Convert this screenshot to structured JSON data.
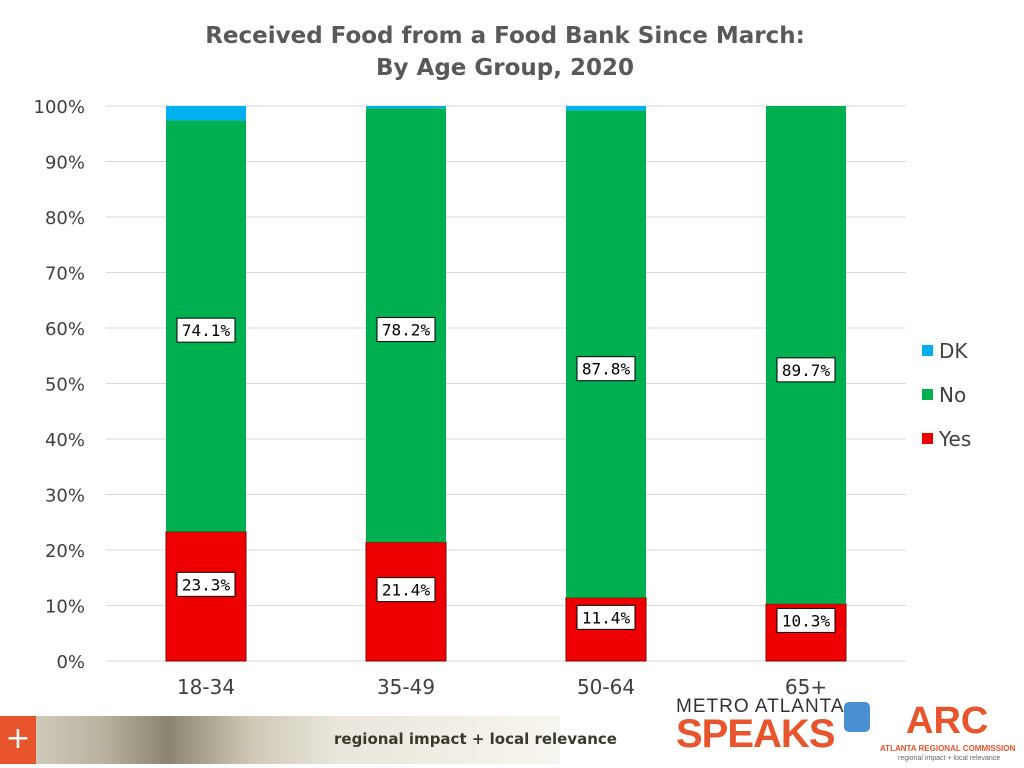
{
  "chart_data": {
    "type": "bar",
    "stacked": true,
    "title_lines": [
      "Received Food from a Food Bank Since March:",
      "By Age Group, 2020"
    ],
    "categories": [
      "18-34",
      "35-49",
      "50-64",
      "65+"
    ],
    "series": [
      {
        "name": "Yes",
        "color": "#ee0000",
        "values": [
          23.3,
          21.4,
          11.4,
          10.3
        ],
        "labels": [
          "23.3%",
          "21.4%",
          "11.4%",
          "10.3%"
        ]
      },
      {
        "name": "No",
        "color": "#00b050",
        "values": [
          74.1,
          78.2,
          87.8,
          89.7
        ],
        "labels": [
          "74.1%",
          "78.2%",
          "87.8%",
          "89.7%"
        ]
      },
      {
        "name": "DK",
        "color": "#00b0f0",
        "values": [
          2.6,
          0.4,
          0.8,
          0.0
        ],
        "labels": [
          "",
          "",
          "",
          ""
        ]
      }
    ],
    "legend_order": [
      "DK",
      "No",
      "Yes"
    ],
    "legend_position": "right",
    "ylim": [
      0,
      100
    ],
    "yticks": [
      0,
      10,
      20,
      30,
      40,
      50,
      60,
      70,
      80,
      90,
      100
    ],
    "ytick_labels": [
      "0%",
      "10%",
      "20%",
      "30%",
      "40%",
      "50%",
      "60%",
      "70%",
      "80%",
      "90%",
      "100%"
    ],
    "grid": true
  },
  "footer": {
    "plus": "+",
    "tagline": "regional impact + local relevance",
    "metro_logo_line1": "METRO ATLANTA",
    "metro_logo_line2": "SPEAKS",
    "arc_logo": "ARC",
    "arc_name": "ATLANTA REGIONAL COMMISSION",
    "arc_tagline": "regional impact + local relevance"
  }
}
